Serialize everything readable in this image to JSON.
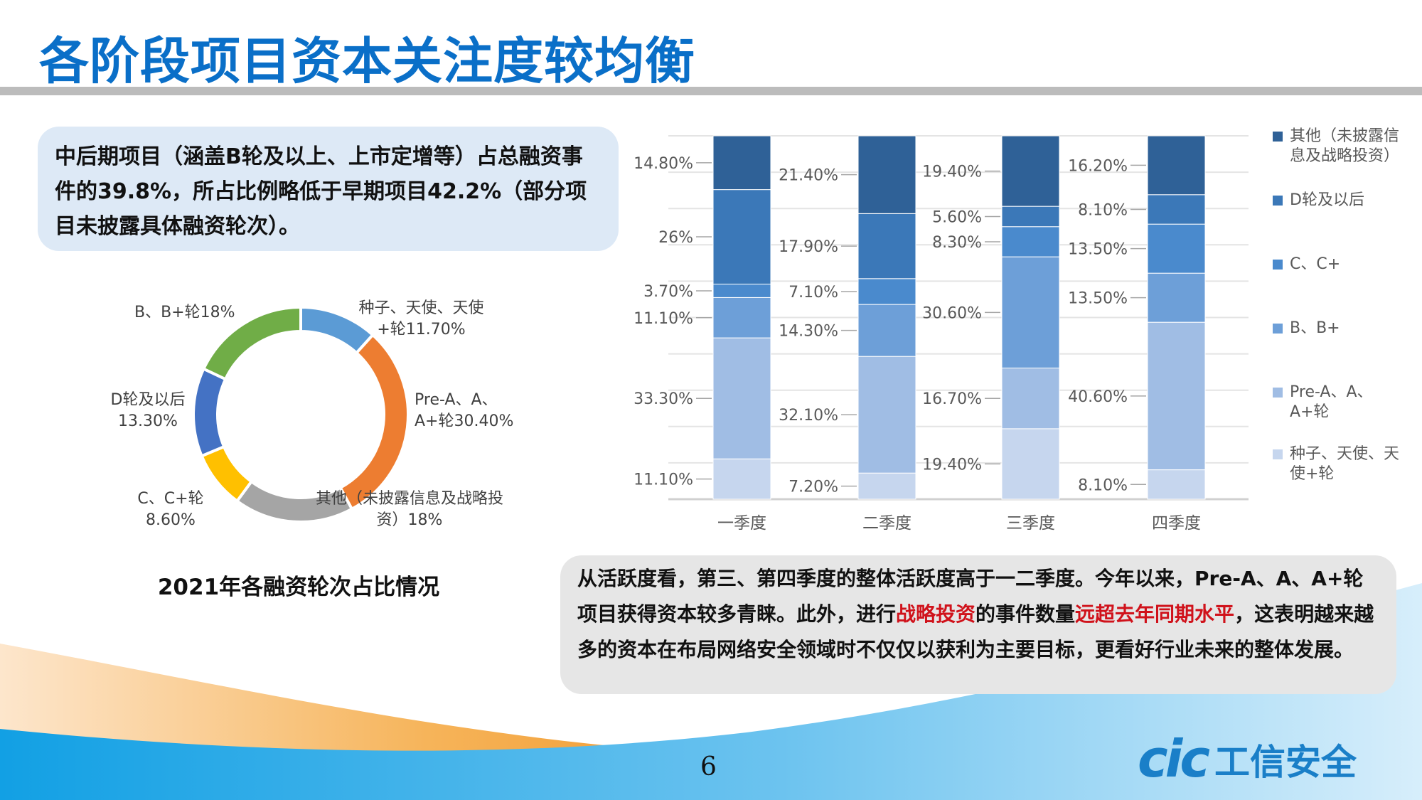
{
  "title": "各阶段项目资本关注度较均衡",
  "summary": {
    "text": "中后期项目（涵盖B轮及以上、上市定增等）占总融资事件的39.8%，所占比例略低于早期项目42.2%（部分项目未披露具体融资轮次）。"
  },
  "analysis": {
    "part1": "从活跃度看，第三、第四季度的整体活跃度高于一二季度。今年以来，Pre-A、A、A+轮项目获得资本较多青睐。此外，进行",
    "highlight1": "战略投资",
    "part2": "的事件数量",
    "highlight2": "远超去年同期水平",
    "part3": "，这表明越来越多的资本在布局网络安全领域时不仅仅以获利为主要目标，更看好行业未来的整体发展。",
    "highlight_color": "#d0121b"
  },
  "page_number": "6",
  "logo": {
    "mark": "cic",
    "text": "工信安全"
  },
  "chart_data": [
    {
      "type": "pie",
      "variant": "donut",
      "title": "2021年各融资轮次占比情况",
      "slices": [
        {
          "label": "种子、天使、天使+轮",
          "value": 11.7,
          "display": "种子、天使、天使+轮11.70%",
          "color": "#5b9bd5"
        },
        {
          "label": "Pre-A、A、A+轮",
          "value": 30.4,
          "display": "Pre-A、A、A+轮30.40%",
          "color": "#ed7d31"
        },
        {
          "label": "其他（未披露信息及战略投资）",
          "value": 18,
          "display": "其他（未披露信息及战略投资）18%",
          "color": "#a5a5a5"
        },
        {
          "label": "C、C+轮",
          "value": 8.6,
          "display": "C、C+轮 8.60%",
          "color": "#ffc000"
        },
        {
          "label": "D轮及以后",
          "value": 13.3,
          "display": "D轮及以后 13.30%",
          "color": "#4472c4"
        },
        {
          "label": "B、B+轮",
          "value": 18,
          "display": "B、B+轮18%",
          "color": "#70ad47"
        }
      ]
    },
    {
      "type": "bar",
      "stacked": "percent",
      "categories": [
        "一季度",
        "二季度",
        "三季度",
        "四季度"
      ],
      "ylim": [
        0,
        100
      ],
      "grid": true,
      "legend": "right",
      "series": [
        {
          "name": "种子、天使、天使+轮",
          "values": [
            11.1,
            7.2,
            19.4,
            8.1
          ],
          "labels": [
            "11.10%",
            "7.20%",
            "19.40%",
            "8.10%"
          ],
          "color": "#c6d6ee"
        },
        {
          "name": "Pre-A、A、A+轮",
          "values": [
            33.3,
            32.1,
            16.7,
            40.6
          ],
          "labels": [
            "33.30%",
            "32.10%",
            "16.70%",
            "40.60%"
          ],
          "color": "#a0bde4"
        },
        {
          "name": "B、B+",
          "values": [
            11.1,
            14.3,
            30.6,
            13.5
          ],
          "labels": [
            "11.10%",
            "14.30%",
            "30.60%",
            "13.50%"
          ],
          "color": "#6d9fd8"
        },
        {
          "name": "C、C+",
          "values": [
            3.7,
            7.1,
            8.3,
            13.5
          ],
          "labels": [
            "3.70%",
            "7.10%",
            "8.30%",
            "13.50%"
          ],
          "color": "#4a8acd"
        },
        {
          "name": "D轮及以后",
          "values": [
            26,
            17.9,
            5.6,
            8.1
          ],
          "labels": [
            "26%",
            "17.90%",
            "5.60%",
            "8.10%"
          ],
          "color": "#3b78b8"
        },
        {
          "name": "其他（未披露信息及战略投资）",
          "values": [
            14.8,
            21.4,
            19.4,
            16.2
          ],
          "labels": [
            "14.80%",
            "21.40%",
            "19.40%",
            "16.20%"
          ],
          "color": "#2f6197"
        }
      ]
    }
  ]
}
